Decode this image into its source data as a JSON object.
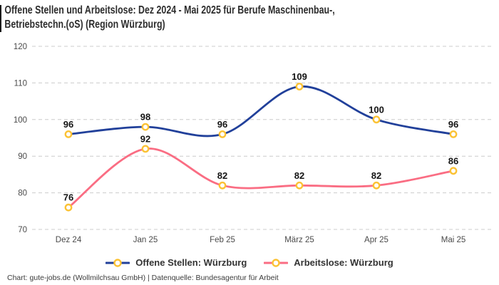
{
  "title": {
    "line1": "Offene Stellen und Arbeitslose: Dez 2024 - Mai 2025 für Berufe Maschinenbau-,",
    "line2": "Betriebstechn.(oS) (Region Würzburg)"
  },
  "chart_data": {
    "type": "line",
    "title": "Offene Stellen und Arbeitslose: Dez 2024 - Mai 2025 für Berufe Maschinenbau-, Betriebstechn.(oS) (Region Würzburg)",
    "categories": [
      "Dez 24",
      "Jan 25",
      "Feb 25",
      "März 25",
      "Apr 25",
      "Mai 25"
    ],
    "series": [
      {
        "name": "Offene Stellen: Würzburg",
        "values": [
          96,
          98,
          96,
          109,
          100,
          96
        ],
        "color": "#21409a"
      },
      {
        "name": "Arbeitslose: Würzburg",
        "values": [
          76,
          92,
          82,
          82,
          82,
          86
        ],
        "color": "#fa6d83"
      }
    ],
    "marker": {
      "fill": "#ffffff",
      "stroke": "#fbc234"
    },
    "data_labels": true,
    "curve": "spline",
    "xlabel": "",
    "ylabel": "",
    "ylim": [
      70,
      120
    ],
    "yticks": [
      70,
      80,
      90,
      100,
      110,
      120
    ],
    "grid": "horizontal-dashed",
    "grid_color": "#cccccc",
    "axis_label_color": "#4a4a4a",
    "data_label_color": "#141414",
    "legend_position": "bottom"
  },
  "footer": {
    "text": "Chart: gute-jobs.de (Wollmilchsau GmbH) | Datenquelle: Bundesagentur für Arbeit"
  }
}
